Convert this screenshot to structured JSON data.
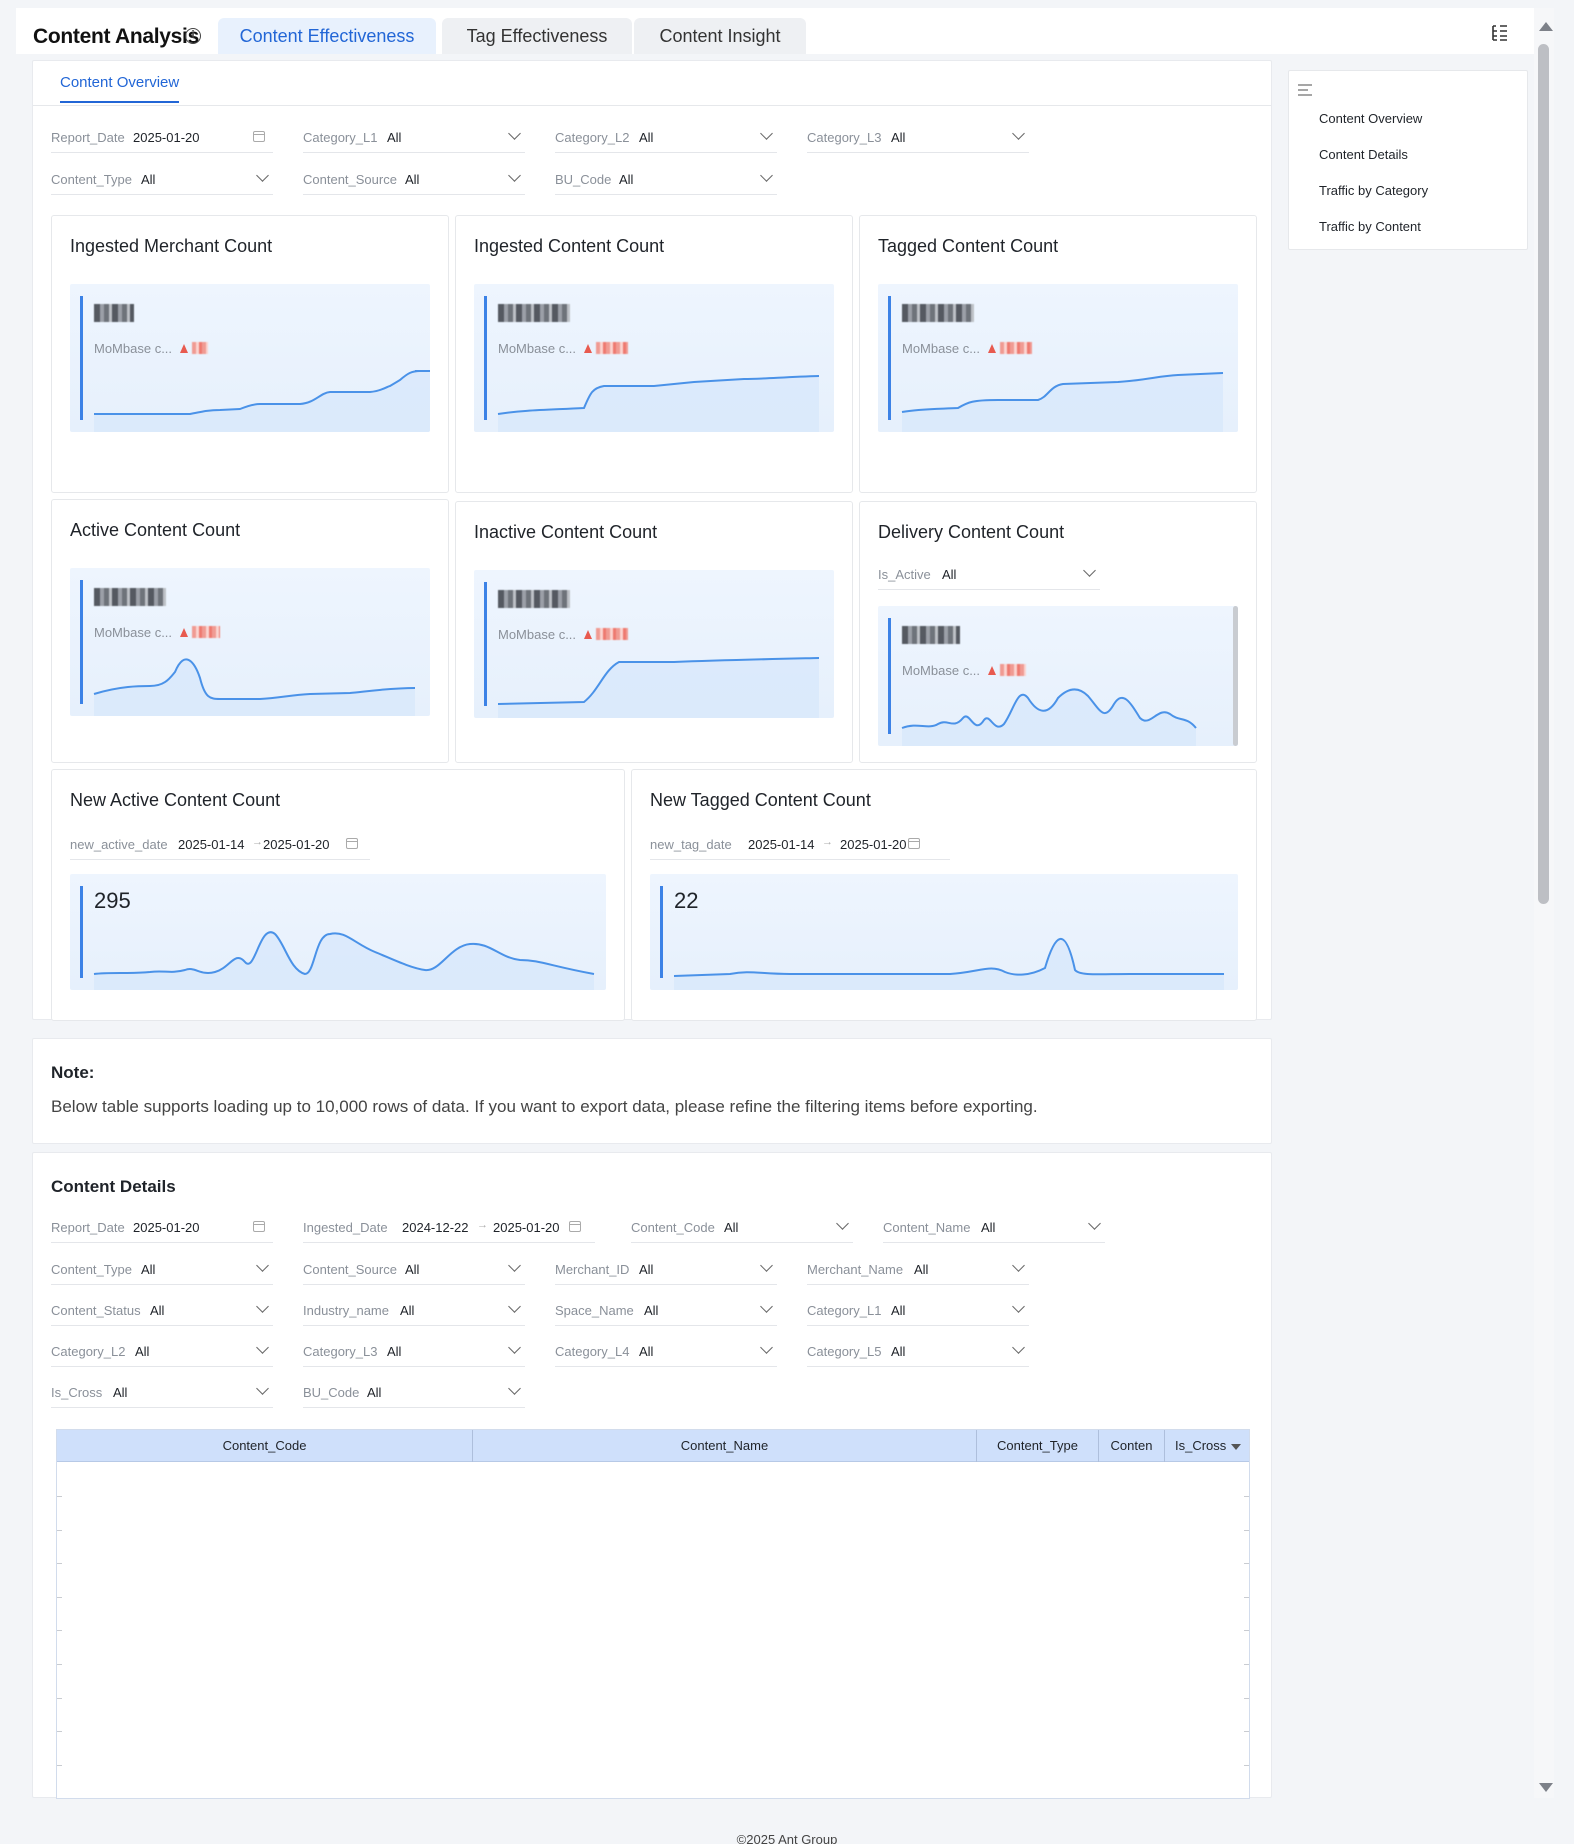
{
  "app": {
    "title": "Content Analysis",
    "info_icon": "info-circle-icon",
    "tabs": [
      {
        "label": "Content Effectiveness",
        "active": true
      },
      {
        "label": "Tag Effectiveness",
        "active": false
      },
      {
        "label": "Content Insight",
        "active": false
      }
    ],
    "tree_icon": "tree-list-icon"
  },
  "overview": {
    "tab_label": "Content Overview",
    "filters": [
      {
        "label": "Report_Date",
        "value": "2025-01-20",
        "kind": "date"
      },
      {
        "label": "Category_L1",
        "value": "All",
        "kind": "select"
      },
      {
        "label": "Category_L2",
        "value": "All",
        "kind": "select"
      },
      {
        "label": "Category_L3",
        "value": "All",
        "kind": "select"
      },
      {
        "label": "Content_Type",
        "value": "All",
        "kind": "select"
      },
      {
        "label": "Content_Source",
        "value": "All",
        "kind": "select"
      },
      {
        "label": "BU_Code",
        "value": "All",
        "kind": "select"
      }
    ],
    "cards": [
      {
        "title": "Ingested Merchant Count",
        "sub": "MoMbase c...",
        "trend": "up"
      },
      {
        "title": "Ingested Content Count",
        "sub": "MoMbase c...",
        "trend": "up"
      },
      {
        "title": "Tagged Content Count",
        "sub": "MoMbase c...",
        "trend": "up"
      },
      {
        "title": "Active Content Count",
        "sub": "MoMbase c...",
        "trend": "up"
      },
      {
        "title": "Inactive Content Count",
        "sub": "MoMbase c...",
        "trend": "up"
      },
      {
        "title": "Delivery Content Count",
        "sub": "MoMbase c...",
        "trend": "up",
        "filter": {
          "label": "Is_Active",
          "value": "All"
        }
      },
      {
        "title": "New Active Content Count",
        "metric": "295",
        "filter": {
          "label": "new_active_date",
          "start": "2025-01-14",
          "end": "2025-01-20"
        }
      },
      {
        "title": "New Tagged Content Count",
        "metric": "22",
        "filter": {
          "label": "new_tag_date",
          "start": "2025-01-14",
          "end": "2025-01-20"
        }
      }
    ]
  },
  "note": {
    "title": "Note:",
    "text": "Below table supports loading up to 10,000 rows of data. If you want to export data, please refine the filtering items before exporting."
  },
  "details": {
    "title": "Content Details",
    "filters_row1": [
      {
        "label": "Report_Date",
        "value": "2025-01-20"
      },
      {
        "label": "Ingested_Date",
        "start": "2024-12-22",
        "end": "2025-01-20"
      },
      {
        "label": "Content_Code",
        "value": "All"
      },
      {
        "label": "Content_Name",
        "value": "All"
      }
    ],
    "filters": [
      {
        "label": "Content_Type",
        "value": "All"
      },
      {
        "label": "Content_Source",
        "value": "All"
      },
      {
        "label": "Merchant_ID",
        "value": "All"
      },
      {
        "label": "Merchant_Name",
        "value": "All"
      },
      {
        "label": "Content_Status",
        "value": "All"
      },
      {
        "label": "Industry_name",
        "value": "All"
      },
      {
        "label": "Space_Name",
        "value": "All"
      },
      {
        "label": "Category_L1",
        "value": "All"
      },
      {
        "label": "Category_L2",
        "value": "All"
      },
      {
        "label": "Category_L3",
        "value": "All"
      },
      {
        "label": "Category_L4",
        "value": "All"
      },
      {
        "label": "Category_L5",
        "value": "All"
      },
      {
        "label": "Is_Cross",
        "value": "All"
      },
      {
        "label": "BU_Code",
        "value": "All"
      }
    ],
    "columns": [
      "Content_Code",
      "Content_Name",
      "Content_Type",
      "Conten",
      "Is_Cross"
    ]
  },
  "toc": {
    "icon": "outline-icon",
    "items": [
      "Content Overview",
      "Content Details",
      "Traffic by Category",
      "Traffic by Content"
    ]
  },
  "footer": "©2025 Ant Group",
  "colors": {
    "accent": "#2266d6",
    "line": "#4a92e8",
    "up": "#e85a4f"
  }
}
